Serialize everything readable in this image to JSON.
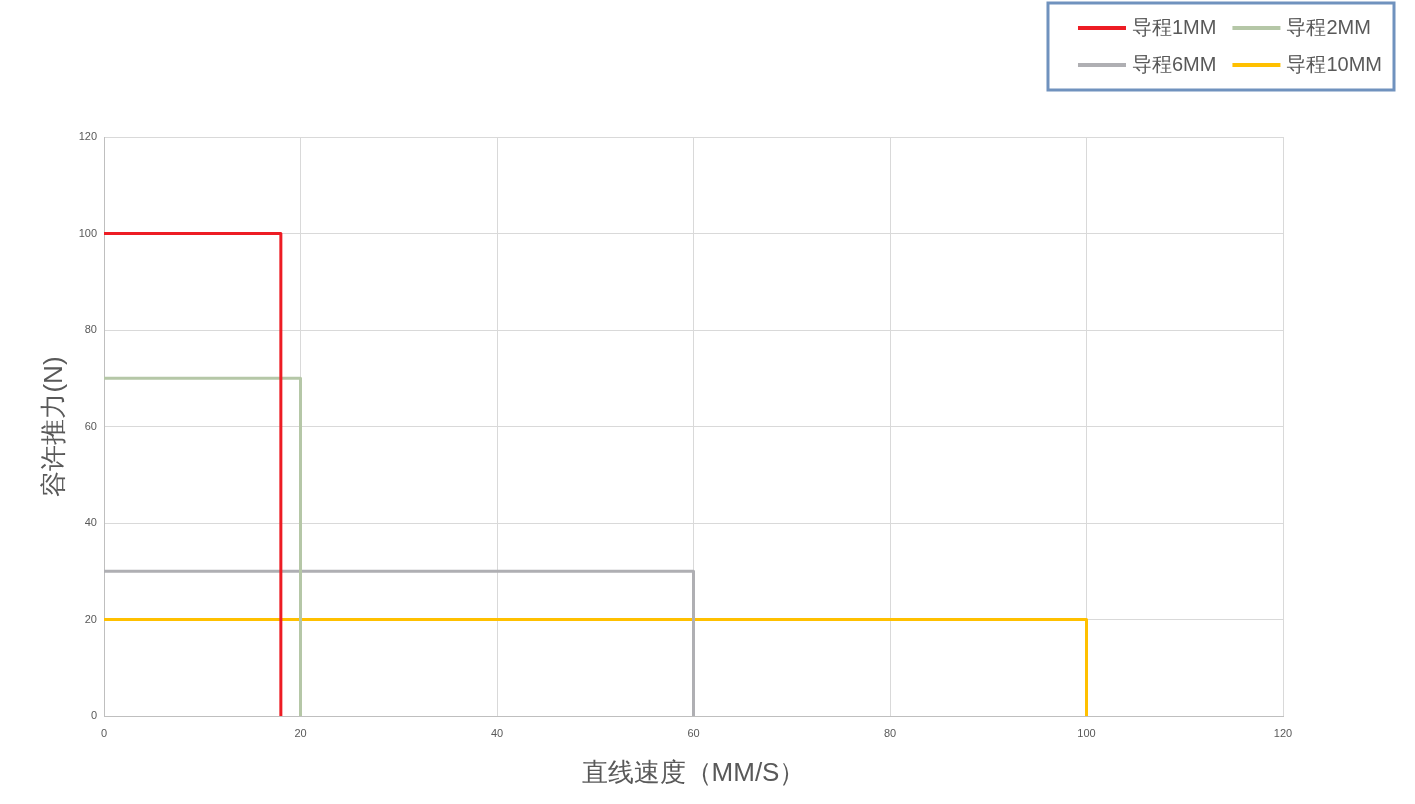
{
  "chart_data": {
    "type": "line",
    "xlabel": "直线速度（MM/S）",
    "ylabel": "容许推力(N)",
    "series": [
      {
        "name": "导程1MM",
        "color": "#ed1c24",
        "x": [
          0,
          18,
          18
        ],
        "values": [
          100,
          100,
          0
        ]
      },
      {
        "name": "导程2MM",
        "color": "#b5c7a7",
        "x": [
          0,
          20,
          20
        ],
        "values": [
          70,
          70,
          0
        ]
      },
      {
        "name": "导程6MM",
        "color": "#afafb3",
        "x": [
          0,
          60,
          60
        ],
        "values": [
          30,
          30,
          0
        ]
      },
      {
        "name": "导程10MM",
        "color": "#ffc000",
        "x": [
          0,
          100,
          100
        ],
        "values": [
          20,
          20,
          0
        ]
      }
    ],
    "xlim": [
      0,
      120
    ],
    "xticks": [
      0,
      20,
      40,
      60,
      80,
      100,
      120
    ],
    "ylim": [
      0,
      120
    ],
    "yticks": [
      0,
      20,
      40,
      60,
      80,
      100,
      120
    ],
    "grid": true,
    "legend": "top right"
  }
}
